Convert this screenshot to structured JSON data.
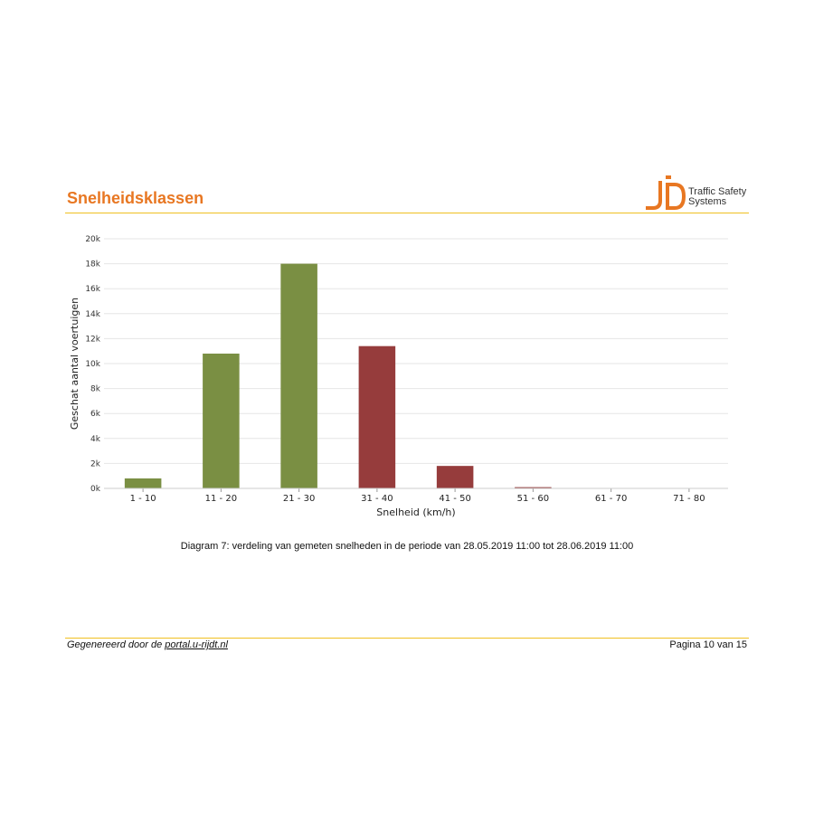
{
  "page": {
    "heading": "Snelheidsklassen",
    "logo": {
      "line1": "Traffic Safety",
      "line2": "Systems",
      "accent": "#e87722"
    },
    "caption": "Diagram 7: verdeling van gemeten snelheden in de periode van 28.05.2019 11:00 tot 28.06.2019 11:00",
    "footer": {
      "prefix": "Gegenereerd door de ",
      "link": "portal.u-rijdt.nl",
      "page": "Pagina 10 van 15"
    }
  },
  "chart_data": {
    "type": "bar",
    "xlabel": "Snelheid (km/h)",
    "ylabel": "Geschat aantal voertuigen",
    "categories": [
      "1 - 10",
      "11 - 20",
      "21 - 30",
      "31 - 40",
      "41 - 50",
      "51 - 60",
      "61 - 70",
      "71 - 80"
    ],
    "values": [
      800,
      10800,
      18000,
      11400,
      1800,
      100,
      0,
      0
    ],
    "bar_colors": [
      "#7a8f43",
      "#7a8f43",
      "#7a8f43",
      "#963c3c",
      "#963c3c",
      "#963c3c",
      "#963c3c",
      "#963c3c"
    ],
    "ylim": [
      0,
      20000
    ],
    "yticks": [
      0,
      2000,
      4000,
      6000,
      8000,
      10000,
      12000,
      14000,
      16000,
      18000,
      20000
    ],
    "ytick_labels": [
      "0k",
      "2k",
      "4k",
      "6k",
      "8k",
      "10k",
      "12k",
      "14k",
      "16k",
      "18k",
      "20k"
    ],
    "grid": true,
    "legend": "none"
  }
}
